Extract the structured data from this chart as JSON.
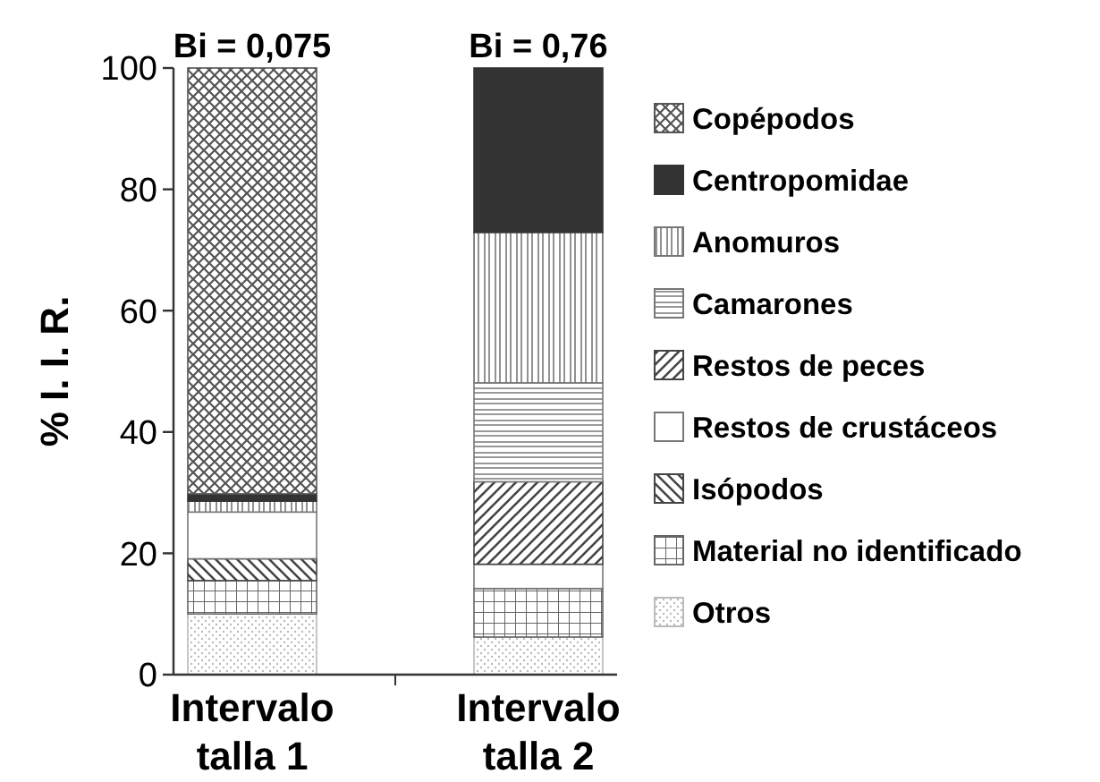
{
  "chart_data": {
    "type": "bar",
    "stacked": true,
    "ylabel": "% I. I. R.",
    "categories": [
      "Intervalo talla 1",
      "Intervalo talla 2"
    ],
    "ylim": [
      0,
      100
    ],
    "yticks": [
      0,
      20,
      40,
      60,
      80,
      100
    ],
    "legend": "right",
    "grid": false,
    "annotations": [
      {
        "text": "Bi = 0,075",
        "x": "Intervalo talla 1",
        "y": 100
      },
      {
        "text": "Bi = 0,76",
        "x": "Intervalo talla 2",
        "y": 100
      }
    ],
    "series": [
      {
        "name": "Otros",
        "color": "#bbbbbb",
        "values": [
          10,
          6.2
        ]
      },
      {
        "name": "Material no identificado",
        "color": "#666666",
        "values": [
          5.5,
          8
        ]
      },
      {
        "name": "Isópodos",
        "color": "#444444",
        "values": [
          3.6,
          0
        ]
      },
      {
        "name": "Restos de crustáceos",
        "color": "#ffffff",
        "values": [
          7.7,
          4
        ]
      },
      {
        "name": "Restos de peces",
        "color": "#444444",
        "values": [
          0,
          13.6
        ]
      },
      {
        "name": "Camarones",
        "color": "#777777",
        "values": [
          0,
          16.3
        ]
      },
      {
        "name": "Anomuros",
        "color": "#777777",
        "values": [
          1.8,
          24.8
        ]
      },
      {
        "name": "Centropomidae",
        "color": "#333333",
        "values": [
          1.2,
          27.1
        ]
      },
      {
        "name": "Copépodos",
        "color": "#555555",
        "values": [
          70.2,
          0
        ]
      }
    ]
  }
}
